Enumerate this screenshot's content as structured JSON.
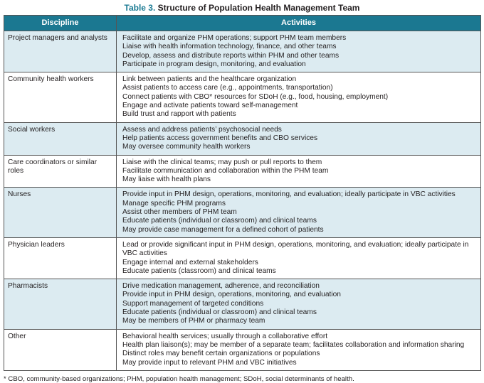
{
  "title": {
    "label": "Table 3.",
    "text": " Structure of Population Health Management Team"
  },
  "columns": [
    "Discipline",
    "Activities"
  ],
  "rows": [
    {
      "discipline": "Project managers and analysts",
      "activities": [
        "Facilitate and organize PHM operations; support PHM team members",
        "Liaise with health information technology, finance, and other teams",
        "Develop, assess and distribute reports within PHM and other teams",
        "Participate in program design, monitoring, and evaluation"
      ]
    },
    {
      "discipline": "Community health workers",
      "activities": [
        "Link between patients and the healthcare organization",
        "Assist patients to access care (e.g., appointments, transportation)",
        "Connect patients with CBO* resources for SDoH (e.g., food, housing, employment)",
        "Engage and activate patients toward self-management",
        "Build trust and rapport with patients"
      ]
    },
    {
      "discipline": "Social workers",
      "activities": [
        "Assess and address patients’ psychosocial needs",
        "Help patients access government benefits and CBO services",
        "May oversee community health workers"
      ]
    },
    {
      "discipline": "Care coordinators or similar roles",
      "activities": [
        "Liaise with the clinical teams; may push or pull reports to them",
        "Facilitate communication and collaboration within the PHM team",
        "May liaise with health plans"
      ]
    },
    {
      "discipline": "Nurses",
      "activities": [
        "Provide input in PHM design, operations, monitoring, and evaluation; ideally participate in VBC activities",
        "Manage specific PHM programs",
        "Assist other members of PHM team",
        "Educate patients (individual or classroom) and clinical teams",
        "May provide case management for a defined cohort of patients"
      ]
    },
    {
      "discipline": "Physician leaders",
      "activities": [
        "Lead or provide significant input in PHM design, operations, monitoring, and evaluation; ideally participate in VBC activities",
        "Engage internal and external stakeholders",
        "Educate patients (classroom) and clinical teams"
      ]
    },
    {
      "discipline": "Pharmacists",
      "activities": [
        "Drive medication management, adherence, and reconciliation",
        "Provide input in PHM design, operations, monitoring, and evaluation",
        "Support management of targeted conditions",
        "Educate patients (individual or classroom) and clinical teams",
        "May be members of PHM or pharmacy team"
      ]
    },
    {
      "discipline": "Other",
      "activities": [
        "Behavioral health services; usually through a collaborative effort",
        "Health plan liaison(s); may be member of a separate team; facilitates collaboration and information sharing",
        "Distinct roles may benefit certain organizations or populations",
        "May provide input to relevant PHM and VBC initiatives"
      ]
    }
  ],
  "footnote": "* CBO, community-based organizations; PHM, population health management; SDoH, social determinants of health.",
  "colors": {
    "header": "#1b7891",
    "shade": "#dcebf1",
    "title_accent": "#1a7a93"
  }
}
